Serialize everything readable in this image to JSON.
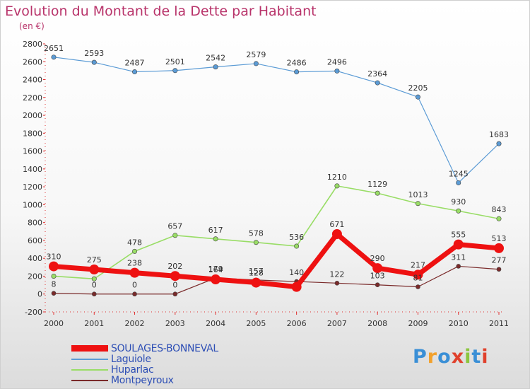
{
  "title": "Evolution du Montant de la Dette par Habitant",
  "subtitle": "(en €)",
  "logo": {
    "text": "Proxiti",
    "letter_colors": [
      "#3a8fd6",
      "#f2a12c",
      "#3a8fd6",
      "#e0412c",
      "#8cc63f",
      "#3a8fd6",
      "#e0412c"
    ]
  },
  "chart_data": {
    "type": "line",
    "x": [
      "2000",
      "2001",
      "2002",
      "2003",
      "2004",
      "2005",
      "2006",
      "2007",
      "2008",
      "2009",
      "2010",
      "2011"
    ],
    "ylim": [
      -200,
      2800
    ],
    "yticks": [
      -200,
      0,
      200,
      400,
      600,
      800,
      1000,
      1200,
      1400,
      1600,
      1800,
      2000,
      2200,
      2400,
      2600,
      2800
    ],
    "grid": false,
    "legend_position": "bottom-left",
    "series": [
      {
        "name": "SOULAGES-BONNEVAL",
        "color": "#ee1111",
        "values": [
          310,
          275,
          238,
          202,
          164,
          128,
          80,
          671,
          290,
          217,
          555,
          513
        ]
      },
      {
        "name": "Laguiole",
        "color": "#5b9bd5",
        "values": [
          2651,
          2593,
          2487,
          2501,
          2542,
          2579,
          2486,
          2496,
          2364,
          2205,
          1245,
          1683
        ]
      },
      {
        "name": "Huparlac",
        "color": "#99dd66",
        "values": [
          200,
          170,
          478,
          657,
          617,
          578,
          536,
          1210,
          1129,
          1013,
          930,
          843
        ]
      },
      {
        "name": "Montpeyroux",
        "color": "#7a2a2a",
        "values": [
          8,
          0,
          0,
          0,
          179,
          157,
          140,
          122,
          103,
          81,
          311,
          277
        ]
      }
    ],
    "data_labels": [
      {
        "series": "Laguiole",
        "values": [
          "2651",
          "2593",
          "2487",
          "2501",
          "2542",
          "2579",
          "2486",
          "2496",
          "2364",
          "2205",
          "1245",
          "1683"
        ]
      },
      {
        "series": "Huparlac",
        "values": [
          "",
          "",
          "478",
          "657",
          "617",
          "578",
          "536",
          "1210",
          "1129",
          "1013",
          "930",
          "843"
        ]
      },
      {
        "series": "SOULAGES-BONNEVAL",
        "values": [
          "310",
          "275",
          "238",
          "202",
          "164",
          "128",
          "",
          "671",
          "290",
          "217",
          "555",
          "513"
        ]
      },
      {
        "series": "Montpeyroux",
        "values": [
          "8",
          "0",
          "0",
          "0",
          "179",
          "157",
          "140",
          "122",
          "103",
          "81",
          "311",
          "277"
        ]
      }
    ]
  }
}
